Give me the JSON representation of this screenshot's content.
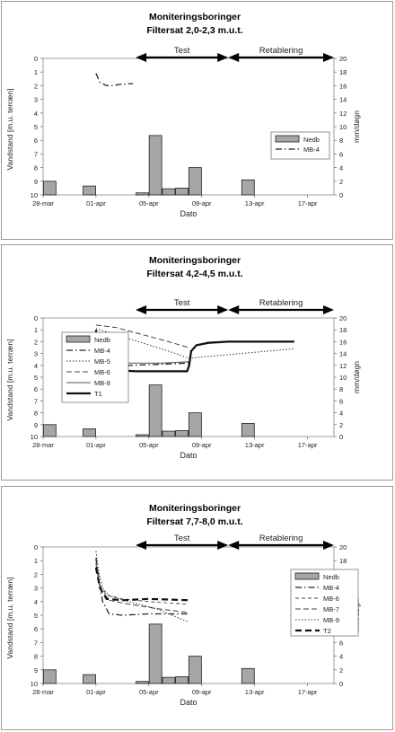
{
  "chart_data": [
    {
      "type": "bar",
      "title": "Moniteringsboringer",
      "subtitle": "Filtersat 2,0-2,3 m.u.t.",
      "xlabel": "Dato",
      "ylabel": "Vandstand [m.u. terræn]",
      "y2label": "mm/døgn",
      "x_ticks": [
        "28-mar",
        "01-apr",
        "05-apr",
        "09-apr",
        "13-apr",
        "17-apr"
      ],
      "ylim": [
        10,
        0
      ],
      "y_ticks": [
        "0",
        "1",
        "2",
        "3",
        "4",
        "5",
        "6",
        "7",
        "8",
        "9",
        "10"
      ],
      "y2lim": [
        0,
        20
      ],
      "y2_ticks": [
        "0",
        "2",
        "4",
        "6",
        "8",
        "10",
        "12",
        "14",
        "16",
        "18",
        "20"
      ],
      "phases": [
        {
          "label": "Test",
          "from": "04-apr",
          "to": "11-apr"
        },
        {
          "label": "Retablering",
          "from": "11-apr",
          "to": "19-apr"
        }
      ],
      "legend_position": "right",
      "bars": {
        "name": "Nedb",
        "color": "#a6a6a6",
        "data": [
          {
            "x": "28-mar",
            "value": 2.0
          },
          {
            "x": "31-mar",
            "value": 1.3
          },
          {
            "x": "04-apr",
            "value": 0.3
          },
          {
            "x": "05-apr",
            "value": 8.7
          },
          {
            "x": "06-apr",
            "value": 0.9
          },
          {
            "x": "07-apr",
            "value": 1.0
          },
          {
            "x": "08-apr",
            "value": 4.0
          },
          {
            "x": "12-apr",
            "value": 2.2
          }
        ]
      },
      "series": [
        {
          "name": "MB-4",
          "style": "dashdot",
          "points": [
            [
              4.0,
              1.1
            ],
            [
              4.3,
              1.75
            ],
            [
              4.8,
              2.0
            ],
            [
              5.3,
              2.0
            ],
            [
              5.8,
              1.9
            ],
            [
              6.8,
              1.85
            ]
          ]
        }
      ]
    },
    {
      "type": "bar",
      "title": "Moniteringsboringer",
      "subtitle": "Filtersat 4,2-4,5 m.u.t.",
      "xlabel": "Dato",
      "ylabel": "Vandstand [m.u. terræn]",
      "y2label": "mm/døgn",
      "x_ticks": [
        "28-mar",
        "01-apr",
        "05-apr",
        "09-apr",
        "13-apr",
        "17-apr"
      ],
      "ylim": [
        10,
        0
      ],
      "y_ticks": [
        "0",
        "1",
        "2",
        "3",
        "4",
        "5",
        "6",
        "7",
        "8",
        "9",
        "10"
      ],
      "y2lim": [
        0,
        20
      ],
      "y2_ticks": [
        "0",
        "2",
        "4",
        "6",
        "8",
        "10",
        "12",
        "14",
        "16",
        "18",
        "20"
      ],
      "phases": [
        {
          "label": "Test",
          "from": "04-apr",
          "to": "11-apr"
        },
        {
          "label": "Retablering",
          "from": "11-apr",
          "to": "19-apr"
        }
      ],
      "legend_position": "left",
      "bars": {
        "name": "Nedb",
        "color": "#a6a6a6",
        "data": [
          {
            "x": "28-mar",
            "value": 2.0
          },
          {
            "x": "31-mar",
            "value": 1.3
          },
          {
            "x": "04-apr",
            "value": 0.3
          },
          {
            "x": "05-apr",
            "value": 8.7
          },
          {
            "x": "06-apr",
            "value": 0.9
          },
          {
            "x": "07-apr",
            "value": 1.0
          },
          {
            "x": "08-apr",
            "value": 4.0
          },
          {
            "x": "12-apr",
            "value": 2.2
          }
        ]
      },
      "series": [
        {
          "name": "MB-4",
          "style": "dashdot",
          "points": [
            [
              4.0,
              1.3
            ],
            [
              4.2,
              2.6
            ],
            [
              4.6,
              3.6
            ],
            [
              5.2,
              3.9
            ],
            [
              6.5,
              4.0
            ],
            [
              9.0,
              3.9
            ],
            [
              11.0,
              3.8
            ]
          ]
        },
        {
          "name": "MB-5",
          "style": "dotted",
          "points": [
            [
              4.0,
              0.9
            ],
            [
              5.5,
              1.4
            ],
            [
              7.5,
              2.1
            ],
            [
              9.5,
              2.8
            ],
            [
              11.0,
              3.4
            ],
            [
              13.0,
              3.2
            ],
            [
              16.0,
              2.9
            ],
            [
              19.0,
              2.6
            ]
          ]
        },
        {
          "name": "MB-6",
          "style": "dashed",
          "points": [
            [
              4.0,
              0.6
            ],
            [
              5.5,
              0.8
            ],
            [
              7.5,
              1.4
            ],
            [
              9.5,
              2.0
            ],
            [
              11.0,
              2.5
            ]
          ]
        },
        {
          "name": "MB-8",
          "style": "solid-thin",
          "points": [
            [
              4.0,
              1.2
            ],
            [
              4.2,
              2.3
            ],
            [
              4.6,
              3.2
            ],
            [
              5.2,
              3.6
            ],
            [
              6.5,
              3.8
            ],
            [
              9.0,
              3.8
            ],
            [
              11.0,
              3.7
            ]
          ]
        },
        {
          "name": "T1",
          "style": "solid-thick",
          "points": [
            [
              4.0,
              1.0
            ],
            [
              4.1,
              2.0
            ],
            [
              4.3,
              3.3
            ],
            [
              4.7,
              4.1
            ],
            [
              5.5,
              4.4
            ],
            [
              7.0,
              4.5
            ],
            [
              9.0,
              4.5
            ],
            [
              10.9,
              4.5
            ],
            [
              11.05,
              4.0
            ],
            [
              11.2,
              2.8
            ],
            [
              11.6,
              2.3
            ],
            [
              12.5,
              2.1
            ],
            [
              14.0,
              2.0
            ],
            [
              16.0,
              2.0
            ],
            [
              19.0,
              2.0
            ]
          ]
        }
      ]
    },
    {
      "type": "bar",
      "title": "Moniteringsboringer",
      "subtitle": "Filtersat 7,7-8,0 m.u.t.",
      "xlabel": "Dato",
      "ylabel": "Vandstand [m.u. terræn]",
      "y2label": "mm/døgn",
      "x_ticks": [
        "28-mar",
        "01-apr",
        "05-apr",
        "09-apr",
        "13-apr",
        "17-apr"
      ],
      "ylim": [
        10,
        0
      ],
      "y_ticks": [
        "0",
        "1",
        "2",
        "3",
        "4",
        "5",
        "6",
        "7",
        "8",
        "9",
        "10"
      ],
      "y2lim": [
        0,
        20
      ],
      "y2_ticks": [
        "0",
        "2",
        "4",
        "6",
        "8",
        "10",
        "12",
        "14",
        "16",
        "18",
        "20"
      ],
      "phases": [
        {
          "label": "Test",
          "from": "04-apr",
          "to": "11-apr"
        },
        {
          "label": "Retablering",
          "from": "11-apr",
          "to": "19-apr"
        }
      ],
      "legend_position": "right",
      "bars": {
        "name": "Nedb",
        "color": "#a6a6a6",
        "data": [
          {
            "x": "28-mar",
            "value": 2.0
          },
          {
            "x": "31-mar",
            "value": 1.3
          },
          {
            "x": "04-apr",
            "value": 0.3
          },
          {
            "x": "05-apr",
            "value": 8.7
          },
          {
            "x": "06-apr",
            "value": 0.9
          },
          {
            "x": "07-apr",
            "value": 1.0
          },
          {
            "x": "08-apr",
            "value": 4.0
          },
          {
            "x": "12-apr",
            "value": 2.2
          }
        ]
      },
      "series": [
        {
          "name": "MB-4",
          "style": "dashdot",
          "points": [
            [
              4.0,
              0.8
            ],
            [
              4.2,
              2.3
            ],
            [
              4.5,
              4.0
            ],
            [
              5.0,
              4.9
            ],
            [
              6.0,
              5.0
            ],
            [
              8.0,
              4.9
            ],
            [
              11.0,
              4.9
            ]
          ]
        },
        {
          "name": "MB-6",
          "style": "dashed-thin",
          "points": [
            [
              4.0,
              1.0
            ],
            [
              4.3,
              2.8
            ],
            [
              4.8,
              3.5
            ],
            [
              6.0,
              3.8
            ],
            [
              8.0,
              4.0
            ],
            [
              11.0,
              4.2
            ]
          ]
        },
        {
          "name": "MB-7",
          "style": "dashed",
          "points": [
            [
              4.0,
              1.2
            ],
            [
              4.3,
              3.0
            ],
            [
              5.0,
              3.9
            ],
            [
              6.5,
              4.2
            ],
            [
              8.5,
              4.5
            ],
            [
              11.0,
              4.8
            ]
          ]
        },
        {
          "name": "MB-9",
          "style": "dotted",
          "points": [
            [
              4.0,
              0.3
            ],
            [
              4.2,
              1.8
            ],
            [
              4.5,
              3.0
            ],
            [
              5.0,
              3.6
            ],
            [
              6.5,
              4.0
            ],
            [
              8.5,
              4.5
            ],
            [
              11.0,
              5.5
            ]
          ]
        },
        {
          "name": "T2",
          "style": "dashed-thick",
          "points": [
            [
              4.0,
              1.5
            ],
            [
              4.3,
              3.0
            ],
            [
              4.8,
              3.8
            ],
            [
              6.0,
              3.9
            ],
            [
              8.0,
              3.8
            ],
            [
              11.0,
              3.9
            ]
          ]
        }
      ]
    }
  ]
}
